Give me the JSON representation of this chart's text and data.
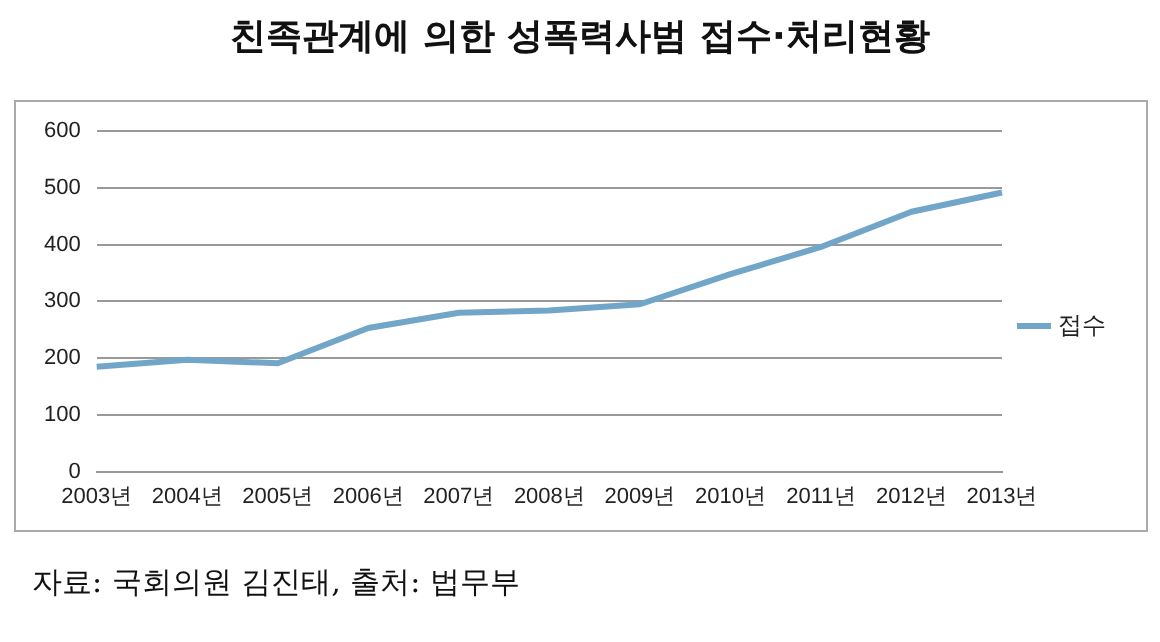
{
  "chart_data": {
    "type": "line",
    "title": "친족관계에 의한 성폭력사범 접수·처리현황",
    "categories": [
      "2003년",
      "2004년",
      "2005년",
      "2006년",
      "2007년",
      "2008년",
      "2009년",
      "2010년",
      "2011년",
      "2012년",
      "2013년"
    ],
    "series": [
      {
        "name": "접수",
        "color": "#71a6c9",
        "values": [
          185,
          197,
          191,
          253,
          280,
          284,
          295,
          348,
          396,
          458,
          492
        ]
      }
    ],
    "ylim": [
      0,
      600
    ],
    "yticks": [
      0,
      100,
      200,
      300,
      400,
      500,
      600
    ],
    "grid": "y",
    "legend": "right",
    "marker": "none",
    "annotations": [
      "자료: 국회의원 김진태, 출처: 법무부"
    ]
  }
}
